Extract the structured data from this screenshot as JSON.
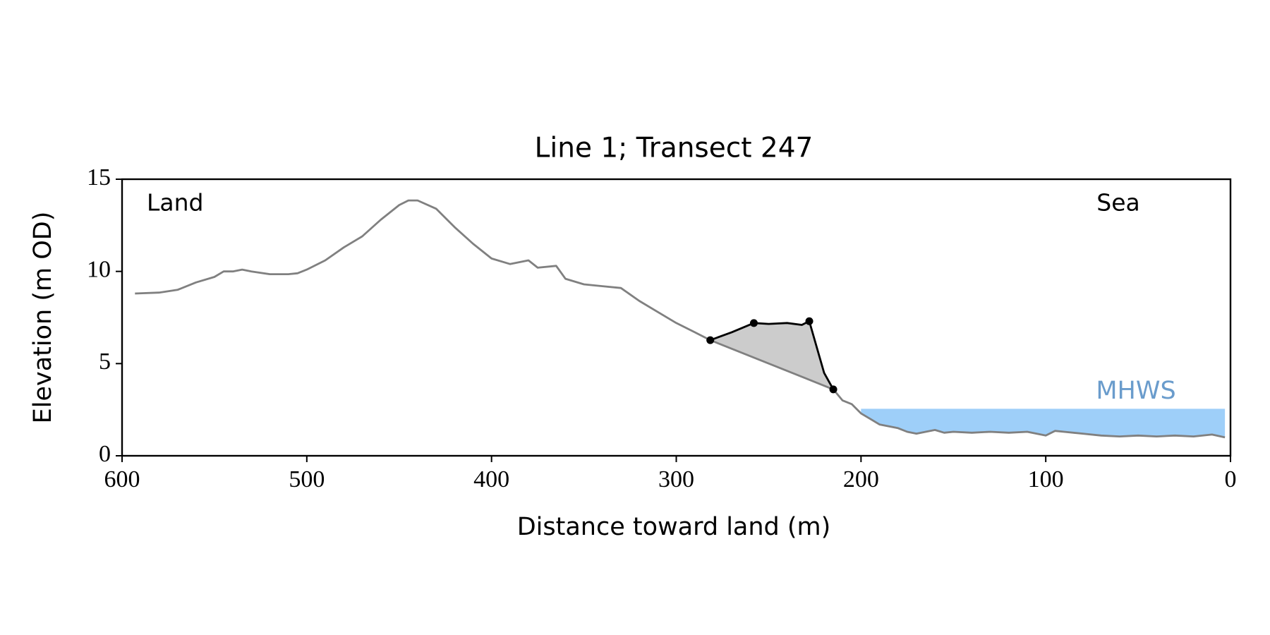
{
  "chart_data": {
    "type": "line",
    "title": "Line 1; Transect 247",
    "xlabel": "Distance toward land (m)",
    "ylabel": "Elevation (m OD)",
    "xlim": [
      600,
      0
    ],
    "ylim": [
      0,
      15
    ],
    "xticks": [
      600,
      500,
      400,
      300,
      200,
      100,
      0
    ],
    "yticks": [
      0,
      5,
      10,
      15
    ],
    "annotations": [
      "Land",
      "Sea"
    ],
    "profile": {
      "color": "#808080",
      "x": [
        593,
        580,
        570,
        560,
        550,
        545,
        540,
        535,
        530,
        520,
        510,
        505,
        500,
        490,
        480,
        470,
        460,
        450,
        445,
        440,
        430,
        420,
        410,
        400,
        390,
        380,
        375,
        365,
        360,
        350,
        340,
        330,
        320,
        310,
        300,
        290,
        281.6,
        215,
        210,
        205,
        200,
        195,
        190,
        180,
        175,
        170,
        165,
        160,
        155,
        150,
        140,
        130,
        120,
        110,
        100,
        95,
        90,
        80,
        70,
        60,
        50,
        40,
        30,
        20,
        10,
        3
      ],
      "values": [
        8.8,
        8.85,
        9.0,
        9.4,
        9.7,
        10.0,
        10.0,
        10.1,
        10.0,
        9.85,
        9.85,
        9.9,
        10.1,
        10.6,
        11.3,
        11.9,
        12.8,
        13.6,
        13.85,
        13.85,
        13.4,
        12.4,
        11.5,
        10.7,
        10.4,
        10.6,
        10.2,
        10.3,
        9.6,
        9.3,
        9.2,
        9.1,
        8.4,
        7.8,
        7.2,
        6.7,
        6.27,
        3.6,
        3.0,
        2.8,
        2.3,
        2.0,
        1.7,
        1.5,
        1.3,
        1.2,
        1.3,
        1.4,
        1.25,
        1.3,
        1.25,
        1.3,
        1.25,
        1.3,
        1.1,
        1.35,
        1.3,
        1.2,
        1.1,
        1.05,
        1.1,
        1.05,
        1.1,
        1.05,
        1.15,
        1.0
      ]
    },
    "feature": {
      "color": "#000000",
      "fill": "#cccccc",
      "x": [
        281.6,
        270,
        258,
        250,
        240,
        232,
        228,
        220,
        215
      ],
      "values": [
        6.27,
        6.7,
        7.2,
        7.15,
        7.2,
        7.1,
        7.3,
        4.5,
        3.6
      ]
    },
    "feature_points": {
      "x": [
        281.6,
        258,
        228,
        215
      ],
      "values": [
        6.27,
        7.2,
        7.3,
        3.6
      ]
    },
    "mhws": {
      "label": "MHWS",
      "level": 2.55,
      "x": [
        200,
        3
      ],
      "color": "#9ecff9",
      "label_color": "#6a9ccc"
    }
  }
}
